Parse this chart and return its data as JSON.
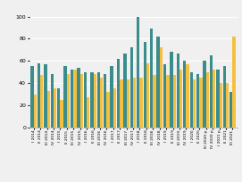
{
  "categories": [
    "I 2014",
    "II 2014",
    "III 2014",
    "IV 2014",
    "I 2015",
    "II 2015",
    "III 2015",
    "IV 2015",
    "I 2016",
    "II 2016",
    "III 2016",
    "IV 2016",
    "I 2017",
    "II 2017",
    "III 2017",
    "IV 2017",
    "I 2018",
    "II 2018",
    "III 2018",
    "IV 2018",
    "I 2019",
    "II 2019",
    "III 2019",
    "IV 2019",
    "I 2020",
    "II 2020",
    "III 2020 p",
    "IV 2020 p",
    "I 2021 p",
    "II 2021",
    "III 2021"
  ],
  "teal_values": [
    55,
    58,
    57,
    48,
    35,
    55,
    52,
    54,
    50,
    50,
    50,
    48,
    55,
    62,
    67,
    72,
    100,
    77,
    89,
    82,
    57,
    68,
    67,
    60,
    50,
    48,
    60,
    65,
    52,
    55,
    32
  ],
  "gold_values": [
    30,
    47,
    33,
    35,
    25,
    48,
    52,
    48,
    27,
    48,
    45,
    32,
    35,
    43,
    43,
    45,
    45,
    58,
    47,
    72,
    47,
    47,
    52,
    57,
    43,
    45,
    50,
    52,
    40,
    40,
    82
  ],
  "teal_color": "#3d8c8c",
  "gold_color": "#f5c040",
  "bar_width": 0.45,
  "background_color": "#f0f0f0",
  "grid_color": "#ffffff",
  "ylim": [
    0,
    110
  ],
  "yticks": [
    0,
    20,
    40,
    60,
    80,
    100
  ]
}
